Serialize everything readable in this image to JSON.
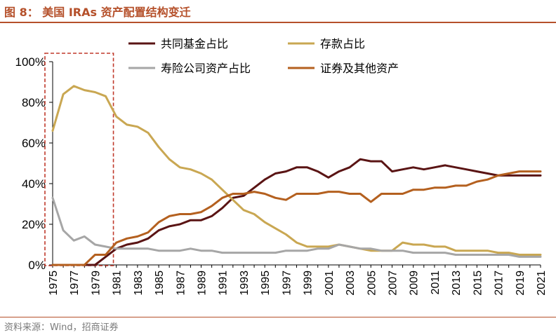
{
  "figure": {
    "title": "图 8： 美国 IRAs 资产配置结构变迁",
    "source": "资料来源：Wind，招商证券"
  },
  "colors": {
    "mutual_funds": "#5a1414",
    "deposits": "#c9a752",
    "insurance": "#a6a6a6",
    "securities": "#b4601f",
    "highlight_box": "#c0392b",
    "accent": "#b5502a"
  },
  "chart_data": {
    "type": "line",
    "title": "美国 IRAs 资产配置结构变迁",
    "xlabel": "",
    "ylabel": "",
    "x": [
      1975,
      1976,
      1977,
      1978,
      1979,
      1980,
      1981,
      1982,
      1983,
      1984,
      1985,
      1986,
      1987,
      1988,
      1989,
      1990,
      1991,
      1992,
      1993,
      1994,
      1995,
      1996,
      1997,
      1998,
      1999,
      2000,
      2001,
      2002,
      2003,
      2004,
      2005,
      2006,
      2007,
      2008,
      2009,
      2010,
      2011,
      2012,
      2013,
      2014,
      2015,
      2016,
      2017,
      2018,
      2019,
      2020,
      2021
    ],
    "xticks": [
      "1975",
      "1977",
      "1979",
      "1981",
      "1983",
      "1985",
      "1987",
      "1989",
      "1991",
      "1993",
      "1995",
      "1997",
      "1999",
      "2001",
      "2003",
      "2005",
      "2007",
      "2009",
      "2011",
      "2013",
      "2015",
      "2017",
      "2019",
      "2021"
    ],
    "ylim": [
      0,
      100
    ],
    "yticks": [
      "0%",
      "20%",
      "40%",
      "60%",
      "80%",
      "100%"
    ],
    "highlight": {
      "x_from": 1975,
      "x_to": 1980,
      "style": "dashed-box"
    },
    "legend_position": "top-right",
    "series": [
      {
        "name": "共同基金占比",
        "color_key": "mutual_funds",
        "values": [
          0,
          0,
          0,
          0,
          0,
          4,
          8,
          10,
          11,
          13,
          17,
          19,
          20,
          22,
          22,
          24,
          28,
          33,
          34,
          38,
          42,
          45,
          46,
          48,
          48,
          46,
          43,
          46,
          48,
          52,
          51,
          51,
          46,
          47,
          48,
          47,
          48,
          49,
          48,
          47,
          46,
          45,
          44,
          44,
          44,
          44,
          44
        ]
      },
      {
        "name": "存款占比",
        "color_key": "deposits",
        "values": [
          66,
          84,
          88,
          86,
          85,
          83,
          73,
          69,
          68,
          65,
          58,
          52,
          48,
          47,
          45,
          42,
          37,
          32,
          27,
          25,
          21,
          18,
          15,
          11,
          9,
          9,
          9,
          10,
          9,
          8,
          7,
          7,
          7,
          11,
          10,
          10,
          9,
          9,
          7,
          7,
          7,
          7,
          6,
          6,
          5,
          5,
          5
        ]
      },
      {
        "name": "寿险公司资产占比",
        "color_key": "insurance",
        "values": [
          33,
          17,
          12,
          14,
          10,
          9,
          8,
          8,
          8,
          8,
          7,
          7,
          7,
          8,
          7,
          7,
          6,
          6,
          6,
          6,
          6,
          6,
          7,
          7,
          7,
          8,
          8,
          10,
          9,
          8,
          8,
          7,
          7,
          7,
          6,
          6,
          6,
          6,
          5,
          5,
          5,
          5,
          5,
          5,
          4,
          4,
          4
        ]
      },
      {
        "name": "证券及其他资产",
        "color_key": "securities",
        "values": [
          0,
          0,
          0,
          0,
          5,
          5,
          11,
          13,
          14,
          16,
          21,
          24,
          25,
          25,
          26,
          29,
          33,
          35,
          35,
          36,
          35,
          33,
          32,
          35,
          35,
          35,
          36,
          36,
          35,
          35,
          31,
          35,
          35,
          35,
          37,
          37,
          38,
          38,
          39,
          39,
          41,
          42,
          44,
          45,
          46,
          46,
          46
        ]
      }
    ]
  }
}
